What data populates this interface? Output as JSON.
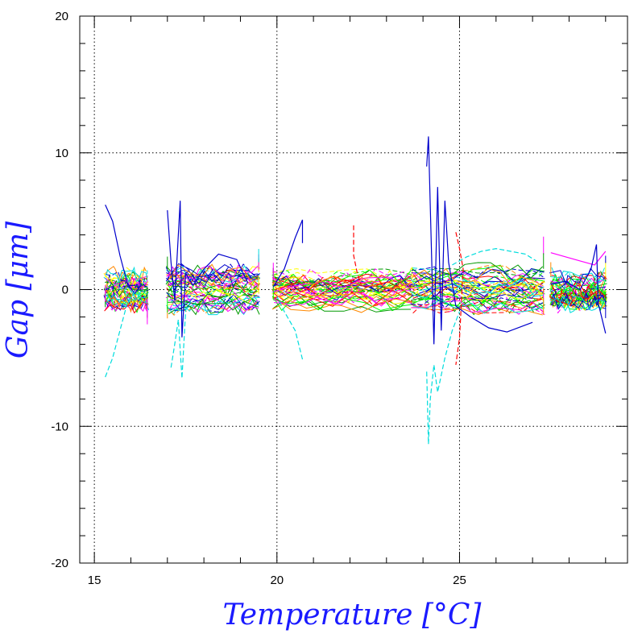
{
  "chart_data": {
    "type": "line",
    "title": "",
    "xlabel": "Temperature [°C]",
    "ylabel": "Gap [μm]",
    "xlim": [
      14.6,
      29.6
    ],
    "ylim": [
      -20,
      20
    ],
    "x_ticks": [
      15,
      20,
      25
    ],
    "y_ticks": [
      -20,
      -10,
      0,
      10,
      20
    ],
    "x_tick_labels": [
      "15",
      "20",
      "25"
    ],
    "y_tick_labels": [
      "-20",
      "-10",
      "0",
      "10",
      "20"
    ],
    "grid": true,
    "legend": "none",
    "series_colors": [
      "#0000cc",
      "#ff0000",
      "#00ff00",
      "#00dddd",
      "#ff00ff",
      "#ffff00",
      "#009900",
      "#ff8800"
    ],
    "temperature_clusters": [
      {
        "x": [
          15.3,
          16.45
        ],
        "spread": 1.2
      },
      {
        "x": [
          17.0,
          19.5
        ],
        "spread": 1.3
      },
      {
        "x": [
          19.9,
          23.7
        ],
        "spread": 1.1
      },
      {
        "x": [
          23.7,
          27.3
        ],
        "spread": 1.4
      },
      {
        "x": [
          27.5,
          29.0
        ],
        "spread": 1.1
      }
    ],
    "series": [
      {
        "color": "#0000cc",
        "dash": false,
        "points": [
          [
            15.3,
            6.2
          ],
          [
            15.5,
            5.0
          ],
          [
            15.7,
            2.5
          ],
          [
            15.9,
            0.5
          ],
          [
            16.1,
            -0.3
          ],
          [
            16.3,
            0.4
          ]
        ]
      },
      {
        "color": "#00dddd",
        "dash": true,
        "points": [
          [
            15.3,
            -6.4
          ],
          [
            15.5,
            -5.0
          ],
          [
            15.7,
            -3.0
          ],
          [
            15.9,
            -1.0
          ],
          [
            16.1,
            -0.2
          ]
        ]
      },
      {
        "color": "#0000cc",
        "dash": false,
        "points": [
          [
            17.0,
            5.8
          ],
          [
            17.1,
            2.0
          ],
          [
            17.2,
            -0.8
          ],
          [
            17.35,
            6.5
          ],
          [
            17.4,
            -3.5
          ],
          [
            17.5,
            1.2
          ],
          [
            17.7,
            0.3
          ],
          [
            18.0,
            1.5
          ],
          [
            18.4,
            2.6
          ],
          [
            18.9,
            2.2
          ],
          [
            19.2,
            0.5
          ]
        ]
      },
      {
        "color": "#00dddd",
        "dash": true,
        "points": [
          [
            17.1,
            -5.7
          ],
          [
            17.2,
            -4.0
          ],
          [
            17.3,
            -2.2
          ],
          [
            17.4,
            -6.5
          ],
          [
            17.5,
            -1.5
          ],
          [
            17.7,
            -0.6
          ]
        ]
      },
      {
        "color": "#0000cc",
        "dash": false,
        "points": [
          [
            19.9,
            0.2
          ],
          [
            20.2,
            1.5
          ],
          [
            20.5,
            3.8
          ],
          [
            20.7,
            5.1
          ],
          [
            20.7,
            3.4
          ]
        ]
      },
      {
        "color": "#00dddd",
        "dash": true,
        "points": [
          [
            20.7,
            -5.1
          ],
          [
            20.5,
            -3.0
          ],
          [
            20.2,
            -1.6
          ],
          [
            20.0,
            -0.5
          ]
        ]
      },
      {
        "color": "#ff0000",
        "dash": true,
        "points": [
          [
            22.1,
            4.7
          ],
          [
            22.1,
            2.5
          ],
          [
            22.2,
            1.2
          ],
          [
            22.3,
            0.4
          ]
        ]
      },
      {
        "color": "#0000cc",
        "dash": false,
        "points": [
          [
            24.1,
            9.0
          ],
          [
            24.15,
            11.2
          ],
          [
            24.2,
            6.0
          ],
          [
            24.3,
            -4.0
          ],
          [
            24.4,
            7.5
          ],
          [
            24.5,
            -3.0
          ],
          [
            24.6,
            6.5
          ],
          [
            24.7,
            2.0
          ],
          [
            24.9,
            -1.2
          ],
          [
            25.3,
            -2.0
          ],
          [
            25.8,
            -2.8
          ],
          [
            26.3,
            -3.1
          ],
          [
            26.8,
            -2.6
          ],
          [
            27.0,
            -2.4
          ]
        ]
      },
      {
        "color": "#00dddd",
        "dash": true,
        "points": [
          [
            24.1,
            -6.0
          ],
          [
            24.15,
            -11.3
          ],
          [
            24.2,
            -8.0
          ],
          [
            24.3,
            -5.5
          ],
          [
            24.4,
            -7.5
          ],
          [
            24.6,
            -5.0
          ],
          [
            24.8,
            -3.0
          ],
          [
            25.0,
            -1.6
          ]
        ]
      },
      {
        "color": "#00dddd",
        "dash": true,
        "points": [
          [
            24.8,
            1.8
          ],
          [
            25.2,
            2.4
          ],
          [
            25.6,
            2.8
          ],
          [
            26.0,
            3.0
          ],
          [
            26.4,
            2.8
          ],
          [
            26.8,
            2.6
          ],
          [
            27.1,
            2.1
          ]
        ]
      },
      {
        "color": "#ff0000",
        "dash": true,
        "points": [
          [
            24.9,
            4.2
          ],
          [
            25.0,
            3.0
          ],
          [
            25.1,
            1.5
          ],
          [
            25.0,
            -3.5
          ],
          [
            24.9,
            -5.5
          ]
        ]
      },
      {
        "color": "#ff00ff",
        "dash": false,
        "points": [
          [
            27.5,
            2.7
          ],
          [
            27.9,
            2.4
          ],
          [
            28.3,
            2.1
          ],
          [
            28.7,
            1.8
          ],
          [
            29.0,
            2.8
          ]
        ]
      },
      {
        "color": "#0000cc",
        "dash": false,
        "points": [
          [
            27.5,
            0.4
          ],
          [
            27.9,
            0.6
          ],
          [
            28.3,
            0.0
          ],
          [
            28.6,
            1.5
          ],
          [
            28.75,
            3.3
          ],
          [
            28.8,
            -1.0
          ],
          [
            29.0,
            -3.2
          ]
        ]
      }
    ]
  }
}
